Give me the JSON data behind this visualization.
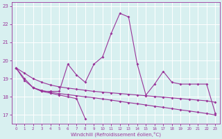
{
  "x": [
    0,
    1,
    2,
    3,
    4,
    5,
    6,
    7,
    8,
    9,
    10,
    11,
    12,
    13,
    14,
    15,
    16,
    17,
    18,
    19,
    20,
    21,
    22,
    23
  ],
  "line1": [
    19.6,
    19.0,
    18.5,
    18.3,
    18.3,
    18.3,
    19.8,
    19.2,
    18.8,
    19.8,
    20.2,
    21.5,
    22.6,
    22.4,
    19.8,
    18.1,
    18.7,
    19.4,
    18.8,
    18.7,
    18.7,
    18.7,
    18.7,
    17.1
  ],
  "line2_x": [
    2,
    3,
    4,
    5,
    6,
    7,
    8
  ],
  "line2_y": [
    18.5,
    18.3,
    18.2,
    18.1,
    18.0,
    17.9,
    16.8
  ],
  "line3": [
    19.6,
    18.9,
    18.5,
    18.35,
    18.25,
    18.18,
    18.12,
    18.06,
    18.0,
    17.95,
    17.88,
    17.82,
    17.75,
    17.68,
    17.62,
    17.55,
    17.48,
    17.42,
    17.35,
    17.28,
    17.22,
    17.15,
    17.08,
    17.0
  ],
  "line4": [
    19.6,
    19.3,
    19.0,
    18.8,
    18.65,
    18.55,
    18.48,
    18.42,
    18.36,
    18.3,
    18.26,
    18.22,
    18.18,
    18.14,
    18.1,
    18.06,
    18.02,
    17.98,
    17.94,
    17.9,
    17.86,
    17.82,
    17.78,
    17.7
  ],
  "color": "#993399",
  "bg_color": "#d8f0f0",
  "grid_color": "#ffffff",
  "xlabel": "Windchill (Refroidissement éolien,°C)",
  "ylim": [
    16.5,
    23.2
  ],
  "xlim": [
    -0.5,
    23.5
  ],
  "yticks": [
    17,
    18,
    19,
    20,
    21,
    22,
    23
  ],
  "xticks": [
    0,
    1,
    2,
    3,
    4,
    5,
    6,
    7,
    8,
    9,
    10,
    11,
    12,
    13,
    14,
    15,
    16,
    17,
    18,
    19,
    20,
    21,
    22,
    23
  ],
  "marker": "D",
  "markersize": 2.0,
  "linewidth": 0.8
}
